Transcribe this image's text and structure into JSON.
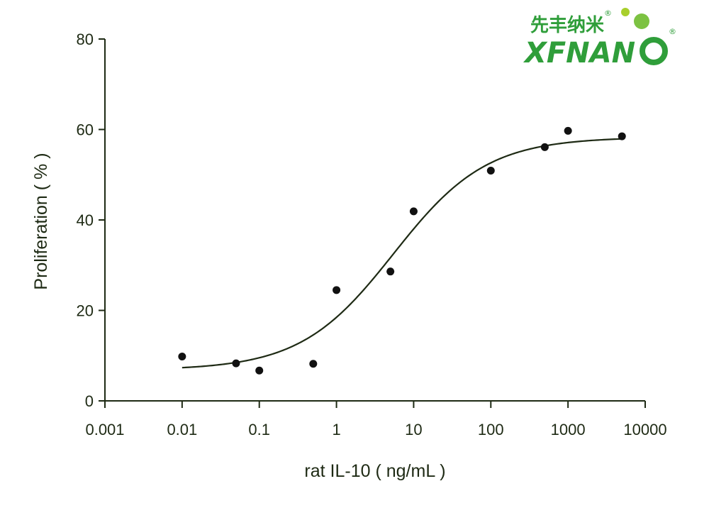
{
  "chart_data": {
    "type": "scatter",
    "xscale": "log",
    "xlim": [
      0.001,
      10000
    ],
    "ylim": [
      0,
      80
    ],
    "x_ticks": [
      0.001,
      0.01,
      0.1,
      1,
      10,
      100,
      1000,
      10000
    ],
    "x_tick_labels": [
      "0.001",
      "0.01",
      "0.1",
      "1",
      "10",
      "100",
      "1000",
      "10000"
    ],
    "y_ticks": [
      0,
      20,
      40,
      60,
      80
    ],
    "y_tick_labels": [
      "0",
      "20",
      "40",
      "60",
      "80"
    ],
    "xlabel": "rat IL-10 ( ng/mL )",
    "ylabel": "Proliferation ( % )",
    "grid": false,
    "legend": "none",
    "points": [
      {
        "x": 0.01,
        "y": 9.8
      },
      {
        "x": 0.05,
        "y": 8.3
      },
      {
        "x": 0.1,
        "y": 6.7
      },
      {
        "x": 0.5,
        "y": 8.2
      },
      {
        "x": 1,
        "y": 24.5
      },
      {
        "x": 5,
        "y": 28.6
      },
      {
        "x": 10,
        "y": 41.9
      },
      {
        "x": 100,
        "y": 50.9
      },
      {
        "x": 500,
        "y": 56.1
      },
      {
        "x": 1000,
        "y": 59.7
      },
      {
        "x": 5000,
        "y": 58.5
      }
    ],
    "fit_curve": {
      "model": "four-parameter logistic",
      "bottom": 6.8,
      "top": 58.3,
      "ec50": 5.5,
      "hill_slope": 0.72,
      "x_range": [
        0.01,
        5000
      ]
    },
    "colors": {
      "axis": "#1e2a14",
      "points": "#111111",
      "curve": "#1e2a14"
    }
  },
  "logo": {
    "chinese_text": "先丰纳米",
    "brand_text": "XFNAN",
    "registered_mark": "®",
    "colors": {
      "primary": "#2f9e3a",
      "accent": "#a8cf2c"
    }
  }
}
